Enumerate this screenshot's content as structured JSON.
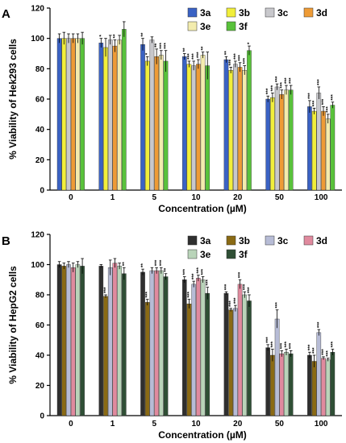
{
  "chart_data": [
    {
      "type": "bar",
      "panel_label": "A",
      "title": "",
      "xlabel": "Concentration (µM)",
      "ylabel": "% Viability of Hek293 cells",
      "ylim": [
        0,
        120
      ],
      "yticks": [
        "0",
        "20",
        "40",
        "60",
        "80",
        "100",
        "120"
      ],
      "categories": [
        "0",
        "1",
        "5",
        "10",
        "20",
        "50",
        "100"
      ],
      "legend_position": "top-right",
      "series": [
        {
          "name": "3a",
          "color": "#3a62c4",
          "values": [
            100,
            97,
            96,
            88,
            86,
            60,
            55
          ],
          "errors": [
            3,
            3,
            4,
            2,
            2,
            2,
            4
          ],
          "stars": [
            "",
            "*",
            "**",
            "**",
            "**",
            "***",
            "***"
          ]
        },
        {
          "name": "3b",
          "color": "#f1ee3b",
          "values": [
            100,
            94,
            85,
            83,
            79,
            61,
            52
          ],
          "errors": [
            4,
            6,
            3,
            2,
            2,
            3,
            2
          ],
          "stars": [
            "",
            "",
            "*",
            "***",
            "***",
            "***",
            "***"
          ]
        },
        {
          "name": "3c",
          "color": "#c8c8cc",
          "values": [
            100,
            99,
            99,
            82,
            83,
            68,
            64
          ],
          "errors": [
            3,
            3,
            2,
            3,
            2,
            2,
            4
          ],
          "stars": [
            "",
            "",
            "",
            "***",
            "***",
            "***",
            "***"
          ]
        },
        {
          "name": "3d",
          "color": "#ee9b36",
          "values": [
            100,
            95,
            88,
            83,
            81,
            63,
            52
          ],
          "errors": [
            3,
            4,
            5,
            3,
            3,
            3,
            3
          ],
          "stars": [
            "",
            "**",
            "**",
            "***",
            "***",
            "***",
            "***"
          ]
        },
        {
          "name": "3e",
          "color": "#f3ecae",
          "values": [
            100,
            99,
            89,
            89,
            79,
            66,
            47
          ],
          "errors": [
            3,
            3,
            3,
            2,
            3,
            3,
            3
          ],
          "stars": [
            "",
            "",
            "***",
            "**",
            "***",
            "***",
            "***"
          ]
        },
        {
          "name": "3f",
          "color": "#59c23b",
          "values": [
            100,
            106,
            85,
            82,
            92,
            66,
            56
          ],
          "errors": [
            4,
            5,
            7,
            9,
            3,
            3,
            2
          ],
          "stars": [
            "",
            "",
            "***",
            "",
            "*",
            "***",
            "***"
          ]
        }
      ]
    },
    {
      "type": "bar",
      "panel_label": "B",
      "title": "",
      "xlabel": "Concentration (µM)",
      "ylabel": "% Viability of HepG2 cells",
      "ylim": [
        0,
        120
      ],
      "yticks": [
        "0",
        "20",
        "40",
        "60",
        "80",
        "100",
        "120"
      ],
      "categories": [
        "0",
        "1",
        "5",
        "10",
        "20",
        "50",
        "100"
      ],
      "legend_position": "top-right",
      "series": [
        {
          "name": "3a",
          "color": "#2f2f2f",
          "values": [
            100,
            99,
            95,
            90,
            81,
            45,
            40
          ],
          "errors": [
            2,
            1,
            2,
            2,
            1,
            2,
            2
          ],
          "stars": [
            "",
            "",
            "**",
            "***",
            "***",
            "***",
            "***"
          ]
        },
        {
          "name": "3b",
          "color": "#8a6a14",
          "values": [
            99,
            79,
            75,
            74,
            70,
            40,
            36
          ],
          "errors": [
            2,
            1,
            2,
            3,
            1,
            4,
            4
          ],
          "stars": [
            "",
            "***",
            "***",
            "***",
            "***",
            "***",
            "***"
          ]
        },
        {
          "name": "3c",
          "color": "#b7bcd6",
          "values": [
            100,
            98,
            96,
            87,
            71,
            64,
            55
          ],
          "errors": [
            2,
            5,
            2,
            2,
            2,
            6,
            2
          ],
          "stars": [
            "",
            "",
            "",
            "***",
            "***",
            "***",
            "***"
          ]
        },
        {
          "name": "3d",
          "color": "#e08a9e",
          "values": [
            98,
            101,
            96,
            91,
            87,
            41,
            38
          ],
          "errors": [
            3,
            3,
            2,
            2,
            3,
            2,
            1
          ],
          "stars": [
            "",
            "",
            "***",
            "***",
            "***",
            "***",
            "***"
          ]
        },
        {
          "name": "3e",
          "color": "#b9d4b9",
          "values": [
            100,
            99,
            96,
            90,
            80,
            42,
            37
          ],
          "errors": [
            2,
            2,
            2,
            2,
            2,
            2,
            1
          ],
          "stars": [
            "",
            "",
            "***",
            "***",
            "***",
            "***",
            "***"
          ]
        },
        {
          "name": "3f",
          "color": "#2f4f35",
          "values": [
            99,
            94,
            92,
            81,
            76,
            41,
            42
          ],
          "errors": [
            5,
            4,
            2,
            4,
            4,
            2,
            2
          ],
          "stars": [
            "",
            "**",
            "**",
            "***",
            "***",
            "***",
            "***"
          ]
        }
      ]
    }
  ]
}
